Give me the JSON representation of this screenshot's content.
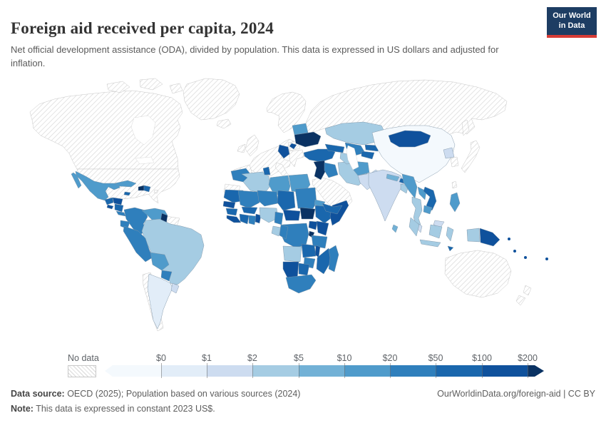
{
  "header": {
    "title": "Foreign aid received per capita, 2024",
    "subtitle": "Net official development assistance (ODA), divided by population. This data is expressed in US dollars and adjusted for inflation.",
    "logo": {
      "line1": "Our World",
      "line2": "in Data",
      "bg": "#1d3d63",
      "accent": "#d73c36"
    }
  },
  "legend": {
    "no_data_label": "No data",
    "tick_labels": [
      "$0",
      "$1",
      "$2",
      "$5",
      "$10",
      "$20",
      "$50",
      "$100",
      "$200"
    ]
  },
  "chart_data": {
    "type": "heatmap",
    "title": "Foreign aid received per capita, 2024",
    "units": "US dollars per person, constant 2023 US$",
    "legend_position": "bottom",
    "buckets": [
      "<$0",
      "$0-$1",
      "$1-$2",
      "$2-$5",
      "$5-$10",
      "$10-$20",
      "$20-$50",
      "$50-$100",
      "$100-$200",
      ">$200",
      "No data"
    ],
    "palette": [
      "#f4f9fd",
      "#e2edf8",
      "#cddcf0",
      "#a5cce3",
      "#72b1d6",
      "#4f9bcb",
      "#2f7fbc",
      "#1a67ad",
      "#0f519c",
      "#0a3263"
    ],
    "no_data_hatch_color": "#d8d8d8",
    "regions": {
      "canada": "nodata",
      "arctic-islands": "nodata",
      "greenland": "nodata",
      "usa": "nodata",
      "iceland": "nodata",
      "scandinavia": "nodata",
      "united-kingdom": "nodata",
      "ireland": "nodata",
      "western-europe": "nodata",
      "iberia": "nodata",
      "italy": "nodata",
      "greece-bulgaria": "nodata",
      "romania": "nodata",
      "russia": "nodata",
      "sakhalin": "nodata",
      "saudi-arabia-gulf": "nodata",
      "south-korea": "nodata",
      "japan": "nodata",
      "taiwan": "nodata",
      "australia": "nodata",
      "new-zealand": "nodata",
      "chile": "nodata",
      "western-sahara": "nodata",
      "suriname-french-guiana": "nodata",
      "puerto-rico": "nodata",
      "mexico": 5,
      "guatemala": 7,
      "honduras": 8,
      "el-salvador": 8,
      "nicaragua": 7,
      "costa-rica": 6,
      "panama": 6,
      "cuba": 5,
      "jamaica": 7,
      "haiti": 9,
      "dominican-republic": 7,
      "colombia": 6,
      "venezuela": 5,
      "guyana": 9,
      "ecuador": 6,
      "peru": 6,
      "brazil": 3,
      "bolivia": 5,
      "paraguay": 6,
      "argentina": 1,
      "uruguay": 2,
      "morocco": 6,
      "algeria": 3,
      "tunisia": 7,
      "libya": 5,
      "egypt": 5,
      "mauritania": 7,
      "senegal": 8,
      "mali": 6,
      "niger": 6,
      "chad": 7,
      "sudan": 6,
      "eritrea": 5,
      "guinea": 7,
      "sierra-leone-liberia": 8,
      "ivory-coast": 7,
      "ghana": 6,
      "togo-benin": 8,
      "burkina-faso": 7,
      "nigeria": 3,
      "cameroon": 6,
      "central-african-republic": 8,
      "south-sudan": 9,
      "ethiopia": 7,
      "somalia": 8,
      "kenya": 8,
      "uganda": 8,
      "rwanda-burundi": 9,
      "dr-congo": 6,
      "gabon": 3,
      "congo": 6,
      "tanzania": 6,
      "angola": 3,
      "zambia": 7,
      "malawi": 8,
      "mozambique": 7,
      "zimbabwe": 6,
      "namibia": 8,
      "botswana": 7,
      "south-africa": 6,
      "madagascar": 6,
      "turkey": 7,
      "syria-jordan": 9,
      "iraq": 6,
      "caucasus": 7,
      "iran": 3,
      "yemen": 7,
      "kazakhstan": 3,
      "uzbekistan": 6,
      "turkmenistan": 3,
      "kyrgyzstan": 7,
      "tajikistan": 7,
      "afghanistan": 5,
      "pakistan": 2,
      "india": 2,
      "nepal": 4,
      "bhutan": 7,
      "bangladesh": 3,
      "sri-lanka": 4,
      "china": 0,
      "mongolia": 8,
      "north-korea": 2,
      "myanmar": 5,
      "thailand": 3,
      "laos": 5,
      "vietnam": 7,
      "cambodia": 5,
      "malaysia": 2,
      "indonesia": 3,
      "papua-new-guinea": 8,
      "philippines": 5,
      "timor-leste": 7,
      "pacific-islands": 8,
      "belarus": 5,
      "ukraine": 9,
      "moldova": 8,
      "balkans": 8
    }
  },
  "footer": {
    "sources_label": "Data source:",
    "sources_text": " OECD (2025); Population based on various sources (2024)",
    "note_label": "Note:",
    "note_text": " This data is expressed in constant 2023 US$.",
    "credit": "OurWorldinData.org/foreign-aid | CC BY"
  }
}
